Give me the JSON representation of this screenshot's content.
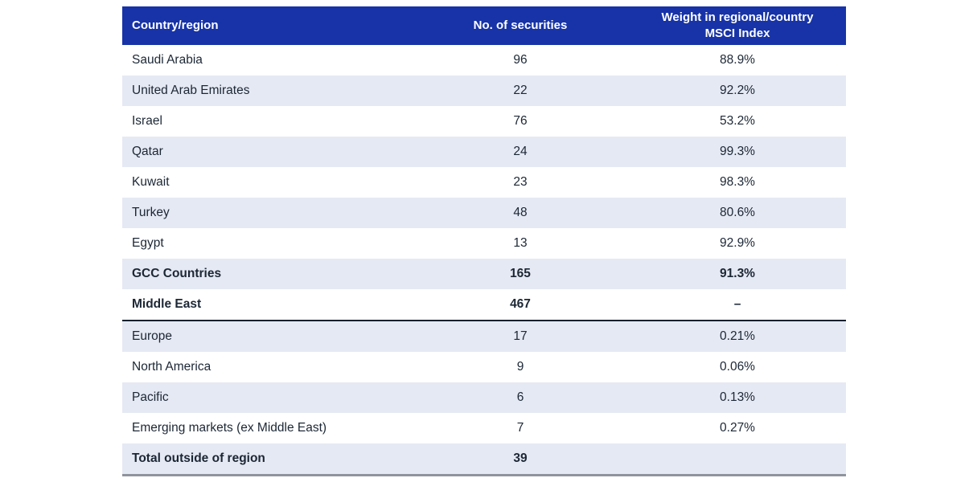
{
  "colors": {
    "header_bg": "#1733A7",
    "header_text": "#FFFFFF",
    "row_alt_bg": "#E5E9F3",
    "row_bg": "#FFFFFF",
    "body_text": "#1C2735",
    "middle_east_rule": "#16202E",
    "bottom_rule": "#8F939D"
  },
  "table": {
    "columns": [
      {
        "label": "Country/region"
      },
      {
        "label": "No. of securities"
      },
      {
        "label": "Weight in regional/country MSCI Index"
      }
    ],
    "rows": [
      {
        "country": "Saudi Arabia",
        "securities": "96",
        "weight": "88.9%",
        "bold": false,
        "divider": false
      },
      {
        "country": "United Arab Emirates",
        "securities": "22",
        "weight": "92.2%",
        "bold": false,
        "divider": false
      },
      {
        "country": "Israel",
        "securities": "76",
        "weight": "53.2%",
        "bold": false,
        "divider": false
      },
      {
        "country": "Qatar",
        "securities": "24",
        "weight": "99.3%",
        "bold": false,
        "divider": false
      },
      {
        "country": "Kuwait",
        "securities": "23",
        "weight": "98.3%",
        "bold": false,
        "divider": false
      },
      {
        "country": "Turkey",
        "securities": "48",
        "weight": "80.6%",
        "bold": false,
        "divider": false
      },
      {
        "country": "Egypt",
        "securities": "13",
        "weight": "92.9%",
        "bold": false,
        "divider": false
      },
      {
        "country": "GCC Countries",
        "securities": "165",
        "weight": "91.3%",
        "bold": true,
        "divider": false
      },
      {
        "country": "Middle East",
        "securities": "467",
        "weight": "–",
        "bold": true,
        "divider": true
      },
      {
        "country": "Europe",
        "securities": "17",
        "weight": "0.21%",
        "bold": false,
        "divider": false
      },
      {
        "country": "North America",
        "securities": "9",
        "weight": "0.06%",
        "bold": false,
        "divider": false
      },
      {
        "country": "Pacific",
        "securities": "6",
        "weight": "0.13%",
        "bold": false,
        "divider": false
      },
      {
        "country": "Emerging markets (ex Middle East)",
        "securities": "7",
        "weight": "0.27%",
        "bold": false,
        "divider": false
      },
      {
        "country": "Total outside of region",
        "securities": "39",
        "weight": "",
        "bold": true,
        "divider": false
      }
    ]
  },
  "chart_data": {
    "type": "table",
    "title": "",
    "columns": [
      "Country/region",
      "No. of securities",
      "Weight in regional/country MSCI Index"
    ],
    "rows": [
      [
        "Saudi Arabia",
        96,
        "88.9%"
      ],
      [
        "United Arab Emirates",
        22,
        "92.2%"
      ],
      [
        "Israel",
        76,
        "53.2%"
      ],
      [
        "Qatar",
        24,
        "99.3%"
      ],
      [
        "Kuwait",
        23,
        "98.3%"
      ],
      [
        "Turkey",
        48,
        "80.6%"
      ],
      [
        "Egypt",
        13,
        "92.9%"
      ],
      [
        "GCC Countries",
        165,
        "91.3%"
      ],
      [
        "Middle East",
        467,
        "–"
      ],
      [
        "Europe",
        17,
        "0.21%"
      ],
      [
        "North America",
        9,
        "0.06%"
      ],
      [
        "Pacific",
        6,
        "0.13%"
      ],
      [
        "Emerging markets (ex Middle East)",
        7,
        "0.27%"
      ],
      [
        "Total outside of region",
        39,
        ""
      ]
    ]
  }
}
